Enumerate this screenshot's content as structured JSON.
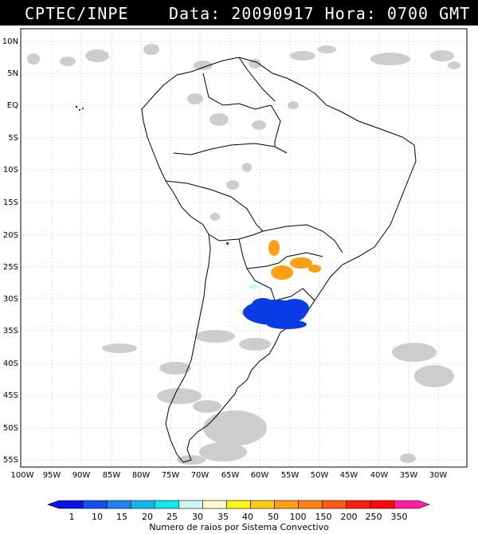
{
  "header": {
    "org": "CPTEC/INPE",
    "date_label": "Data:",
    "date_value": "20090917",
    "time_label": "Hora:",
    "time_value": "0700 GMT"
  },
  "map": {
    "lat_labels": [
      "10N",
      "5N",
      "EQ",
      "5S",
      "10S",
      "15S",
      "20S",
      "25S",
      "30S",
      "35S",
      "40S",
      "45S",
      "50S",
      "55S"
    ],
    "lon_labels": [
      "100W",
      "95W",
      "90W",
      "85W",
      "80W",
      "75W",
      "70W",
      "65W",
      "60W",
      "55W",
      "50W",
      "45W",
      "40W",
      "35W",
      "30W"
    ]
  },
  "colorbar": {
    "values": [
      "1",
      "10",
      "15",
      "20",
      "25",
      "30",
      "35",
      "40",
      "50",
      "100",
      "150",
      "200",
      "250",
      "350"
    ],
    "colors": [
      "#0a14e6",
      "#1450f0",
      "#1e82f5",
      "#14b4f0",
      "#14e6f0",
      "#c8faf5",
      "#fffacd",
      "#fff514",
      "#ffc814",
      "#ffa014",
      "#ff8214",
      "#ff5a14",
      "#ff1e14",
      "#ff0a0a",
      "#ff1ea0"
    ],
    "title": "Numero de raios por Sistema Convectivo"
  }
}
